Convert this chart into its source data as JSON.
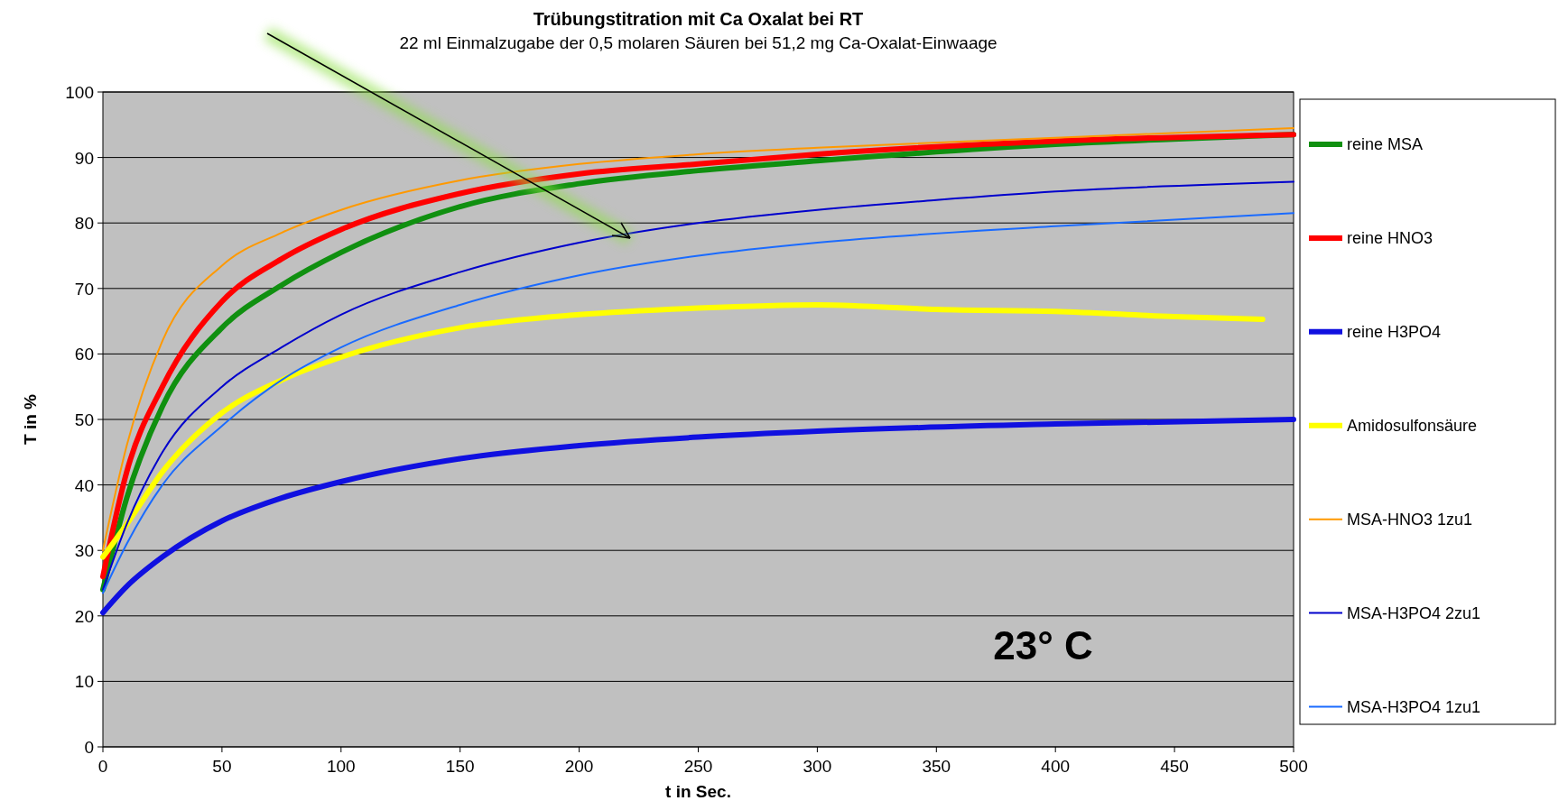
{
  "chart_data": {
    "type": "line",
    "title": "Trübungstitration mit Ca Oxalat bei RT",
    "subtitle": "22 ml Einmalzugabe der 0,5 molaren Säuren bei 51,2 mg Ca-Oxalat-Einwaage",
    "xlabel": "t in Sec.",
    "ylabel": "T in %",
    "annotations": [
      "23° C"
    ],
    "xlim": [
      0,
      500
    ],
    "xticks": [
      0,
      50,
      100,
      150,
      200,
      250,
      300,
      350,
      400,
      450,
      500
    ],
    "ylim": [
      0,
      100
    ],
    "yticks": [
      0,
      10,
      20,
      30,
      40,
      50,
      60,
      70,
      80,
      90,
      100
    ],
    "grid": "y",
    "legend": "right",
    "marker": "none",
    "series": [
      {
        "name": "reine MSA",
        "color": "#109010",
        "x": [
          0,
          10,
          25,
          50,
          75,
          100,
          150,
          200,
          250,
          300,
          400,
          500
        ],
        "values": [
          24,
          38,
          52,
          64,
          70.5,
          75.5,
          82.5,
          86,
          88,
          89.5,
          92,
          93.5
        ]
      },
      {
        "name": "reine HNO3",
        "color": "#ff0000",
        "x": [
          0,
          10,
          25,
          50,
          75,
          100,
          150,
          200,
          250,
          300,
          400,
          500
        ],
        "values": [
          26,
          42,
          55,
          68,
          74.5,
          79,
          84.5,
          87.5,
          89,
          90.5,
          92.5,
          93.5
        ]
      },
      {
        "name": "reine H3PO4",
        "color": "#1010e0",
        "x": [
          0,
          10,
          25,
          50,
          75,
          100,
          150,
          200,
          250,
          300,
          400,
          500
        ],
        "values": [
          20.5,
          24.5,
          29,
          34.5,
          38,
          40.5,
          44,
          46,
          47.3,
          48.2,
          49.3,
          50
        ]
      },
      {
        "name": "Amidosulfonsäure",
        "color": "#ffff00",
        "x": [
          0,
          10,
          25,
          50,
          75,
          100,
          150,
          200,
          250,
          300,
          320,
          350,
          400,
          450,
          487
        ],
        "values": [
          29,
          34,
          42,
          51,
          56,
          59.5,
          64,
          66,
          67,
          67.5,
          67.3,
          66.8,
          66.5,
          65.7,
          65.3
        ]
      },
      {
        "name": "MSA-HNO3 1zu1",
        "color": "#ff9900",
        "x": [
          0,
          10,
          25,
          50,
          75,
          100,
          150,
          200,
          250,
          300,
          400,
          500
        ],
        "values": [
          30,
          46,
          62,
          73.5,
          78.5,
          82,
          86.5,
          89,
          90.5,
          91.5,
          93,
          94.5
        ]
      },
      {
        "name": "MSA-H3PO4 2zu1",
        "color": "#0000cc",
        "x": [
          0,
          10,
          25,
          50,
          75,
          100,
          150,
          200,
          250,
          300,
          350,
          400,
          500
        ],
        "values": [
          24,
          34,
          45,
          55,
          61,
          66,
          72.5,
          77,
          80,
          82,
          83.5,
          84.8,
          86.3
        ]
      },
      {
        "name": "MSA-H3PO4 1zu1",
        "color": "#1a6bff",
        "x": [
          0,
          10,
          25,
          50,
          75,
          100,
          150,
          200,
          250,
          300,
          400,
          500
        ],
        "values": [
          23.5,
          31,
          40,
          49,
          56,
          61,
          67.5,
          72,
          75,
          77,
          79.5,
          81.5
        ]
      }
    ]
  }
}
